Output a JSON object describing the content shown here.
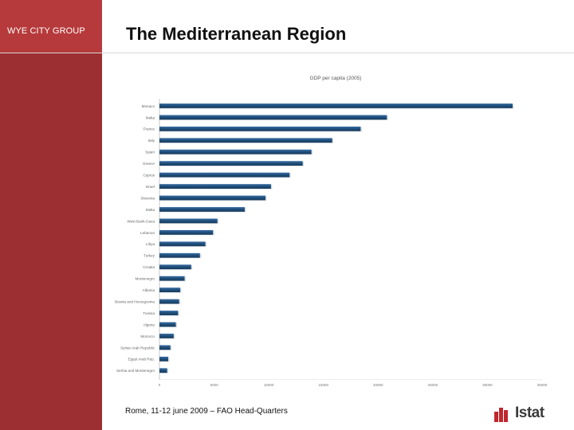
{
  "header": {
    "group_name": "WYE CITY GROUP",
    "title": "The Mediterranean Region"
  },
  "footer": {
    "text": "Rome, 11-12 june 2009 – FAO Head-Quarters",
    "logo_text": "Istat"
  },
  "colors": {
    "sidebar": "#9b2f31",
    "sidebar_top": "#b63a3b",
    "bar": "#1f4e79",
    "logo": "#c0262d"
  },
  "chart_data": {
    "type": "bar",
    "orientation": "horizontal",
    "title": "GDP per capita (2005)",
    "xlabel": "",
    "ylabel": "",
    "xlim": [
      0,
      35000
    ],
    "x_ticks": [
      "0",
      "5000",
      "10000",
      "15000",
      "20000",
      "25000",
      "30000",
      "35000"
    ],
    "categories": [
      "Monaco",
      "Malta",
      "France",
      "Italy",
      "Spain",
      "Greece",
      "Cyprus",
      "Israel",
      "Slovenia",
      "Malta",
      "West Bank-Gaza",
      "Lebanon",
      "Libya",
      "Turkey",
      "Croatia",
      "Montenegro",
      "Albania",
      "Bosnia and Herzegovina",
      "Tunisia",
      "Algeria",
      "Morocco",
      "Syrian Arab Republic",
      "Egypt Arab Rep.",
      "Serbia and Montenegro"
    ],
    "values": [
      32300,
      20800,
      18400,
      15800,
      13900,
      13100,
      11900,
      10200,
      9700,
      7800,
      5300,
      4900,
      4200,
      3700,
      2900,
      2300,
      1900,
      1800,
      1700,
      1500,
      1300,
      1000,
      800,
      700
    ]
  }
}
